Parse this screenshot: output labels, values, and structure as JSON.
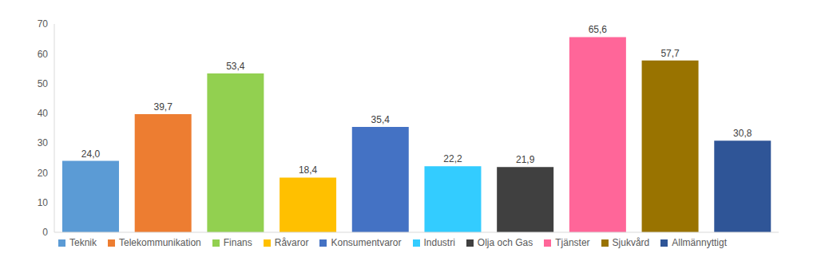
{
  "chart_data": {
    "type": "bar",
    "categories": [
      "Teknik",
      "Telekommunikation",
      "Finans",
      "Råvaror",
      "Konsumentvaror",
      "Industri",
      "Olja och Gas",
      "Tjänster",
      "Sjukvård",
      "Allmännyttigt"
    ],
    "values": [
      24.0,
      39.7,
      53.4,
      18.4,
      35.4,
      22.2,
      21.9,
      65.6,
      57.7,
      30.8
    ],
    "value_labels": [
      "24,0",
      "39,7",
      "53,4",
      "18,4",
      "35,4",
      "22,2",
      "21,9",
      "65,6",
      "57,7",
      "30,8"
    ],
    "colors": [
      "#5B9BD5",
      "#ED7D31",
      "#92D050",
      "#FFC000",
      "#4472C4",
      "#33CCFF",
      "#404040",
      "#FF6699",
      "#997300",
      "#2F5597"
    ],
    "ylim": [
      0,
      70
    ],
    "yticks": [
      0,
      10,
      20,
      30,
      40,
      50,
      60,
      70
    ],
    "grid": false,
    "legend": "bottom",
    "data_labels": true,
    "tick_labels": "y"
  }
}
